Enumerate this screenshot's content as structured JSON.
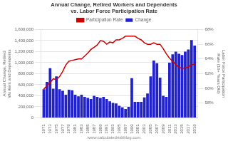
{
  "chart_data": {
    "type": "bar",
    "title": "Annual Change, Retired Workers and Dependents vs. Labor Force Participation Rate",
    "ylabel": "Annual Change, Retired Workers and Dependents",
    "y2label": "Labor Force Participation Rate (16+ Years Old)",
    "annotations": [
      "www.calculatedriskblog.com"
    ],
    "x": [
      1971,
      1972,
      1973,
      1974,
      1975,
      1976,
      1977,
      1978,
      1979,
      1980,
      1981,
      1982,
      1983,
      1984,
      1985,
      1986,
      1987,
      1988,
      1989,
      1990,
      1991,
      1992,
      1993,
      1994,
      1995,
      1996,
      1997,
      1998,
      1999,
      2000,
      2001,
      2002,
      2003,
      2004,
      2005,
      2006,
      2007,
      2008,
      2009,
      2010,
      2011,
      2012,
      2013,
      2014,
      2015,
      2016,
      2017,
      2018,
      2019
    ],
    "xlim": [
      1970,
      2020
    ],
    "xticks": [
      1971,
      1973,
      1975,
      1977,
      1979,
      1981,
      1983,
      1985,
      1987,
      1989,
      1991,
      1993,
      1995,
      1997,
      1999,
      2001,
      2003,
      2005,
      2007,
      2009,
      2011,
      2013,
      2015,
      2017,
      2019
    ],
    "series": [
      {
        "name": "Change",
        "type": "bar",
        "color": "#2222cc",
        "values": [
          520000,
          650000,
          900000,
          530000,
          750000,
          520000,
          490000,
          420000,
          510000,
          500000,
          420000,
          390000,
          420000,
          380000,
          360000,
          340000,
          400000,
          380000,
          360000,
          380000,
          340000,
          300000,
          270000,
          260000,
          220000,
          190000,
          160000,
          200000,
          720000,
          290000,
          290000,
          290000,
          370000,
          440000,
          750000,
          1040000,
          990000,
          730000,
          400000,
          380000,
          1000000,
          1150000,
          1200000,
          1160000,
          1140000,
          1200000,
          1240000,
          1410000,
          1310000
        ]
      },
      {
        "name": "Participation Rate",
        "type": "line",
        "color": "#cc0000",
        "axis": "y2",
        "values": [
          59.9,
          60.4,
          60.8,
          61.3,
          61.2,
          61.6,
          62.3,
          63.2,
          63.7,
          63.8,
          63.9,
          64.0,
          64.0,
          64.4,
          64.8,
          65.3,
          65.6,
          65.9,
          66.5,
          66.4,
          66.0,
          66.3,
          66.2,
          66.6,
          66.6,
          66.8,
          67.1,
          67.1,
          67.1,
          67.1,
          66.8,
          66.6,
          66.2,
          66.0,
          66.0,
          66.2,
          66.0,
          66.0,
          65.4,
          64.7,
          64.1,
          63.7,
          63.2,
          62.9,
          62.7,
          62.8,
          62.9,
          63.2,
          63.3
        ]
      }
    ],
    "ylim": [
      0,
      1600000
    ],
    "yticks": [
      0,
      {
        "value": 200000,
        "label": "200,000"
      },
      {
        "value": 400000,
        "label": "400,000"
      },
      {
        "value": 600000,
        "label": "600,000"
      },
      {
        "value": 800000,
        "label": "800,000"
      },
      {
        "value": 1000000,
        "label": "1,000,000"
      },
      {
        "value": 1200000,
        "label": "1,200,000"
      },
      {
        "value": 1400000,
        "label": "1,400,000"
      },
      {
        "value": 1600000,
        "label": "1,600,000"
      }
    ],
    "y2lim": [
      56,
      68
    ],
    "y2ticks": [
      {
        "value": 58,
        "label": "58%"
      },
      {
        "value": 60,
        "label": "60%"
      },
      {
        "value": 62,
        "label": "62%"
      },
      {
        "value": 64,
        "label": "64%"
      },
      {
        "value": 66,
        "label": "66%"
      },
      {
        "value": 68,
        "label": "68%"
      }
    ],
    "grid": true,
    "legend": "top"
  }
}
